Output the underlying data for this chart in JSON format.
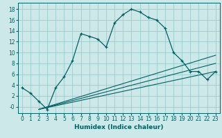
{
  "title": "",
  "xlabel": "Humidex (Indice chaleur)",
  "bg_color": "#cce8e8",
  "grid_color": "#99cccc",
  "line_color": "#006060",
  "xlim": [
    -0.5,
    23.5
  ],
  "ylim": [
    -1.2,
    19.2
  ],
  "x_ticks": [
    0,
    1,
    2,
    3,
    4,
    5,
    6,
    7,
    8,
    9,
    10,
    11,
    12,
    13,
    14,
    15,
    16,
    17,
    18,
    19,
    20,
    21,
    22,
    23
  ],
  "y_ticks": [
    0,
    2,
    4,
    6,
    8,
    10,
    12,
    14,
    16,
    18
  ],
  "y_tick_labels": [
    "-0",
    "2",
    "4",
    "6",
    "8",
    "10",
    "12",
    "14",
    "16",
    "18"
  ],
  "main_x": [
    0,
    1,
    2,
    3,
    4,
    5,
    6,
    7,
    8,
    9,
    10,
    11,
    12,
    13,
    14,
    15,
    16,
    17,
    18,
    19,
    20,
    21,
    22,
    23
  ],
  "main_y": [
    3.5,
    2.5,
    1.0,
    -0.5,
    3.5,
    5.5,
    8.5,
    13.5,
    13.0,
    12.5,
    11.0,
    15.5,
    17.0,
    18.0,
    17.5,
    16.5,
    16.0,
    14.5,
    10.0,
    8.5,
    6.5,
    6.5,
    5.0,
    6.5
  ],
  "line1_x": [
    2,
    23
  ],
  "line1_y": [
    -0.5,
    6.5
  ],
  "line2_x": [
    2,
    23
  ],
  "line2_y": [
    -0.5,
    8.0
  ],
  "line3_x": [
    2,
    23
  ],
  "line3_y": [
    -0.5,
    9.5
  ],
  "tick_fontsize": 5.5,
  "xlabel_fontsize": 6.5
}
